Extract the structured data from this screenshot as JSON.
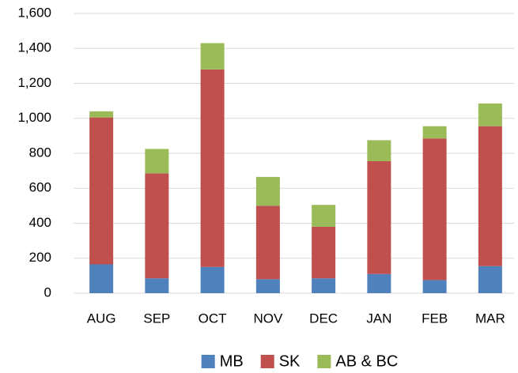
{
  "chart_data": {
    "type": "stacked_bar",
    "categories": [
      "AUG",
      "SEP",
      "OCT",
      "NOV",
      "DEC",
      "JAN",
      "FEB",
      "MAR"
    ],
    "series": [
      {
        "name": "MB",
        "color": "#4f81bd",
        "values": [
          165,
          85,
          150,
          80,
          85,
          110,
          75,
          155
        ]
      },
      {
        "name": "SK",
        "color": "#c0504d",
        "values": [
          840,
          600,
          1130,
          420,
          295,
          645,
          810,
          800
        ]
      },
      {
        "name": "AB & BC",
        "color": "#9bbb59",
        "values": [
          35,
          140,
          150,
          165,
          125,
          120,
          70,
          130
        ]
      }
    ],
    "ylim": [
      0,
      1600
    ],
    "yticks": [
      0,
      200,
      400,
      600,
      800,
      {
        "value": 1000,
        "label": "1,000"
      },
      {
        "value": 1200,
        "label": "1,200"
      },
      {
        "value": 1400,
        "label": "1,400"
      },
      {
        "value": 1600,
        "label": "1,600"
      }
    ],
    "grid": true,
    "legend": "bottom"
  }
}
